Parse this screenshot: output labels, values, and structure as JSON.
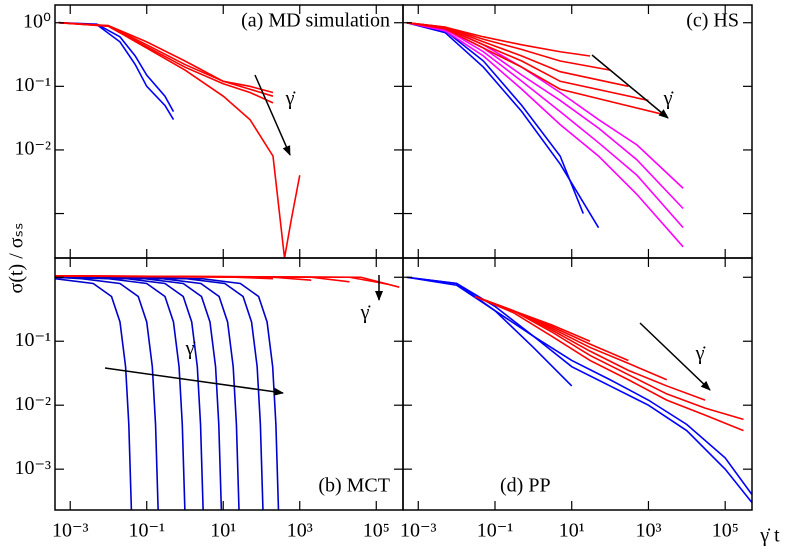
{
  "chart_data": [
    {
      "type": "line",
      "title": "(a) MD simulation",
      "ylabel": "σ(t) / σₛₛ",
      "log_x": true,
      "log_y": true,
      "xlim": [
        0.0004,
        500000
      ],
      "ylim": [
        0.0002,
        1.9
      ],
      "xticks": [
        0.001,
        0.1,
        10,
        1000,
        100000
      ],
      "yticks": [
        {
          "value": 1,
          "label": "10⁰"
        },
        {
          "value": 0.1,
          "label": "10⁻¹"
        },
        {
          "value": 0.01,
          "label": "10⁻²"
        },
        0.001
      ],
      "annotations": [
        "γ̇"
      ],
      "series": [
        {
          "color": "#0000ff",
          "x": [
            0.0005,
            0.005,
            0.02,
            0.05,
            0.1,
            0.3,
            0.5
          ],
          "values": [
            1,
            0.95,
            0.6,
            0.3,
            0.15,
            0.07,
            0.04
          ]
        },
        {
          "color": "#0000ff",
          "x": [
            0.0005,
            0.005,
            0.02,
            0.05,
            0.1,
            0.3,
            0.5
          ],
          "values": [
            1,
            0.93,
            0.5,
            0.22,
            0.1,
            0.05,
            0.03
          ]
        },
        {
          "color": "#ff0000",
          "x": [
            0.0005,
            0.01,
            0.1,
            1,
            10,
            50,
            200
          ],
          "values": [
            1,
            0.9,
            0.5,
            0.25,
            0.12,
            0.1,
            0.08
          ]
        },
        {
          "color": "#ff0000",
          "x": [
            0.0005,
            0.01,
            0.1,
            1,
            10,
            50,
            200
          ],
          "values": [
            1,
            0.9,
            0.45,
            0.22,
            0.12,
            0.09,
            0.07
          ]
        },
        {
          "color": "#ff0000",
          "x": [
            0.0005,
            0.01,
            0.1,
            1,
            10,
            50,
            200
          ],
          "values": [
            1,
            0.88,
            0.42,
            0.2,
            0.11,
            0.08,
            0.055
          ]
        },
        {
          "color": "#ff0000",
          "x": [
            0.0005,
            0.01,
            0.1,
            1,
            10,
            50,
            200,
            400,
            600,
            1000
          ],
          "values": [
            1,
            0.88,
            0.4,
            0.18,
            0.07,
            0.03,
            0.008,
            0.0002,
            0.0008,
            0.004
          ]
        }
      ]
    },
    {
      "type": "line",
      "title": "(b) MCT",
      "log_x": true,
      "log_y": true,
      "xlim": [
        0.0004,
        500000
      ],
      "ylim": [
        0.00023,
        2
      ],
      "xticks": [
        {
          "value": 0.001,
          "label": "10⁻³"
        },
        {
          "value": 0.1,
          "label": "10⁻¹"
        },
        {
          "value": 10,
          "label": "10¹"
        },
        {
          "value": 1000,
          "label": "10³"
        },
        {
          "value": 100000,
          "label": "10⁵"
        }
      ],
      "yticks": [
        1,
        {
          "value": 0.1,
          "label": "10⁻¹"
        },
        {
          "value": 0.01,
          "label": "10⁻²"
        },
        {
          "value": 0.001,
          "label": "10⁻³"
        }
      ],
      "annotations": [
        "γ̇",
        "γ̇"
      ],
      "series": [
        {
          "color": "#0000cc",
          "x": [
            0.0004,
            0.004,
            0.012,
            0.02,
            0.028,
            0.034,
            0.04
          ],
          "values": [
            0.95,
            0.8,
            0.5,
            0.2,
            0.04,
            0.005,
            0.0002
          ]
        },
        {
          "color": "#0000cc",
          "x": [
            0.0004,
            0.002,
            0.02,
            0.06,
            0.1,
            0.14,
            0.17,
            0.2
          ],
          "values": [
            1,
            0.95,
            0.8,
            0.5,
            0.2,
            0.04,
            0.005,
            0.0002
          ]
        },
        {
          "color": "#0000cc",
          "x": [
            0.0004,
            0.01,
            0.1,
            0.3,
            0.5,
            0.7,
            0.85,
            1
          ],
          "values": [
            1,
            0.95,
            0.8,
            0.5,
            0.2,
            0.04,
            0.005,
            0.0002
          ]
        },
        {
          "color": "#0000cc",
          "x": [
            0.0004,
            0.03,
            0.3,
            0.9,
            1.5,
            2.1,
            2.55,
            3
          ],
          "values": [
            1,
            0.95,
            0.8,
            0.5,
            0.2,
            0.04,
            0.005,
            0.0002
          ]
        },
        {
          "color": "#0000cc",
          "x": [
            0.0004,
            0.09,
            0.9,
            2.7,
            4.5,
            6.3,
            7.65,
            9
          ],
          "values": [
            1,
            0.95,
            0.8,
            0.5,
            0.2,
            0.04,
            0.005,
            0.0002
          ]
        },
        {
          "color": "#0000cc",
          "x": [
            0.0004,
            0.26,
            2.6,
            7.8,
            13,
            18.2,
            22.1,
            26
          ],
          "values": [
            1,
            0.95,
            0.8,
            0.5,
            0.2,
            0.04,
            0.005,
            0.0002
          ]
        },
        {
          "color": "#0000cc",
          "x": [
            0.0004,
            1.1,
            11,
            33,
            55,
            77,
            93.5,
            110
          ],
          "values": [
            1,
            0.95,
            0.8,
            0.5,
            0.2,
            0.04,
            0.005,
            0.0002
          ]
        },
        {
          "color": "#0000cc",
          "x": [
            0.0004,
            2.8,
            28,
            84,
            140,
            196,
            238,
            280
          ],
          "values": [
            1,
            0.95,
            0.8,
            0.5,
            0.2,
            0.04,
            0.005,
            0.0002
          ]
        },
        {
          "color": "#ff0000",
          "x": [
            0.0004,
            20,
            200
          ],
          "values": [
            1.05,
            1,
            0.95
          ]
        },
        {
          "color": "#ff0000",
          "x": [
            0.0004,
            200,
            2000
          ],
          "values": [
            1.05,
            1,
            0.9
          ]
        },
        {
          "color": "#ff0000",
          "x": [
            0.0004,
            2000,
            20000
          ],
          "values": [
            1.05,
            1,
            0.85
          ]
        },
        {
          "color": "#ff0000",
          "x": [
            0.0004,
            20000,
            200000
          ],
          "values": [
            1.05,
            1,
            0.78
          ]
        },
        {
          "color": "#ff0000",
          "x": [
            0.0004,
            40000,
            400000
          ],
          "values": [
            1.05,
            1,
            0.7
          ]
        }
      ]
    },
    {
      "type": "line",
      "title": "(c) HS",
      "log_x": true,
      "log_y": true,
      "xlim": [
        0.0004,
        500000
      ],
      "ylim": [
        0.0002,
        1.9
      ],
      "xticks": [
        0.001,
        0.1,
        10,
        1000,
        100000
      ],
      "yticks": [
        1,
        0.1,
        0.01,
        0.001
      ],
      "annotations": [
        "γ̇"
      ],
      "series": [
        {
          "color": "#0000ff",
          "x": [
            0.0005,
            0.005,
            0.05,
            0.5,
            5,
            50
          ],
          "values": [
            1,
            0.7,
            0.2,
            0.04,
            0.006,
            0.0006
          ]
        },
        {
          "color": "#0000ff",
          "x": [
            0.0005,
            0.005,
            0.05,
            0.5,
            5,
            20
          ],
          "values": [
            1,
            0.75,
            0.25,
            0.05,
            0.008,
            0.001
          ]
        },
        {
          "color": "#ff00ff",
          "x": [
            0.0005,
            0.005,
            0.05,
            0.5,
            5,
            50,
            500,
            8000
          ],
          "values": [
            1,
            0.75,
            0.3,
            0.09,
            0.025,
            0.008,
            0.002,
            0.0003
          ]
        },
        {
          "color": "#ff00ff",
          "x": [
            0.0005,
            0.005,
            0.05,
            0.5,
            5,
            50,
            500,
            8000
          ],
          "values": [
            1,
            0.8,
            0.35,
            0.12,
            0.04,
            0.013,
            0.004,
            0.0006
          ]
        },
        {
          "color": "#ff00ff",
          "x": [
            0.0005,
            0.005,
            0.05,
            0.5,
            5,
            50,
            500,
            8000
          ],
          "values": [
            1,
            0.8,
            0.4,
            0.15,
            0.06,
            0.022,
            0.007,
            0.0012
          ]
        },
        {
          "color": "#ff00ff",
          "x": [
            0.0005,
            0.005,
            0.05,
            0.5,
            5,
            50,
            500,
            8000
          ],
          "values": [
            1,
            0.85,
            0.45,
            0.2,
            0.08,
            0.03,
            0.012,
            0.0025
          ]
        },
        {
          "color": "#ff0000",
          "x": [
            0.0005,
            0.005,
            0.05,
            0.5,
            5,
            30
          ],
          "values": [
            1,
            0.85,
            0.6,
            0.45,
            0.35,
            0.3
          ]
        },
        {
          "color": "#ff0000",
          "x": [
            0.0005,
            0.005,
            0.05,
            0.5,
            5,
            100
          ],
          "values": [
            1,
            0.85,
            0.55,
            0.38,
            0.25,
            0.18
          ]
        },
        {
          "color": "#ff0000",
          "x": [
            0.0005,
            0.005,
            0.05,
            0.5,
            5,
            300
          ],
          "values": [
            1,
            0.85,
            0.5,
            0.3,
            0.17,
            0.1
          ]
        },
        {
          "color": "#ff0000",
          "x": [
            0.0005,
            0.005,
            0.05,
            0.5,
            5,
            1000
          ],
          "values": [
            1,
            0.82,
            0.45,
            0.25,
            0.12,
            0.06
          ]
        },
        {
          "color": "#ff0000",
          "x": [
            0.0005,
            0.005,
            0.05,
            0.5,
            5,
            3000
          ],
          "values": [
            1,
            0.8,
            0.4,
            0.2,
            0.09,
            0.035
          ]
        }
      ]
    },
    {
      "type": "line",
      "title": "(d) PP",
      "xlabel": "γ̇ t",
      "log_x": true,
      "log_y": true,
      "xlim": [
        0.0004,
        500000
      ],
      "ylim": [
        0.00023,
        2
      ],
      "xticks": [
        {
          "value": 0.001,
          "label": "10⁻³"
        },
        {
          "value": 0.1,
          "label": "10⁻¹"
        },
        {
          "value": 10,
          "label": "10¹"
        },
        {
          "value": 1000,
          "label": "10³"
        },
        {
          "value": 100000,
          "label": "10⁵"
        }
      ],
      "yticks": [
        1,
        0.1,
        0.01,
        0.001
      ],
      "annotations": [
        "γ̇"
      ],
      "series": [
        {
          "color": "#0000ff",
          "x": [
            0.0005,
            0.01,
            0.1,
            1,
            10,
            100,
            1000,
            10000,
            100000,
            500000
          ],
          "values": [
            1,
            0.8,
            0.3,
            0.12,
            0.04,
            0.02,
            0.01,
            0.004,
            0.001,
            0.0003
          ]
        },
        {
          "color": "#0000ff",
          "x": [
            0.0005,
            0.01,
            0.1,
            1,
            10,
            100,
            1000,
            10000,
            100000,
            500000
          ],
          "values": [
            1,
            0.8,
            0.35,
            0.12,
            0.05,
            0.025,
            0.012,
            0.005,
            0.0015,
            0.0004
          ]
        },
        {
          "color": "#0000ff",
          "x": [
            0.0005,
            0.01,
            0.1,
            1,
            10
          ],
          "values": [
            1,
            0.75,
            0.3,
            0.08,
            0.02
          ]
        },
        {
          "color": "#ff0000",
          "x": [
            0.03,
            0.3,
            3,
            30
          ],
          "values": [
            0.5,
            0.3,
            0.18,
            0.1
          ]
        },
        {
          "color": "#ff0000",
          "x": [
            0.03,
            0.3,
            3,
            30,
            300
          ],
          "values": [
            0.5,
            0.3,
            0.17,
            0.09,
            0.05
          ]
        },
        {
          "color": "#ff0000",
          "x": [
            0.03,
            0.3,
            3,
            30,
            300,
            3000
          ],
          "values": [
            0.5,
            0.3,
            0.16,
            0.08,
            0.045,
            0.025
          ]
        },
        {
          "color": "#ff0000",
          "x": [
            0.03,
            0.3,
            3,
            30,
            300,
            3000,
            30000
          ],
          "values": [
            0.5,
            0.3,
            0.15,
            0.07,
            0.035,
            0.02,
            0.012
          ]
        },
        {
          "color": "#ff0000",
          "x": [
            0.03,
            0.3,
            3,
            30,
            300,
            3000,
            30000,
            300000
          ],
          "values": [
            0.5,
            0.3,
            0.14,
            0.06,
            0.03,
            0.015,
            0.009,
            0.006
          ]
        },
        {
          "color": "#ff0000",
          "x": [
            0.03,
            0.3,
            3,
            30,
            300,
            3000,
            30000,
            300000
          ],
          "values": [
            0.5,
            0.28,
            0.12,
            0.05,
            0.025,
            0.012,
            0.007,
            0.004
          ]
        }
      ]
    }
  ]
}
